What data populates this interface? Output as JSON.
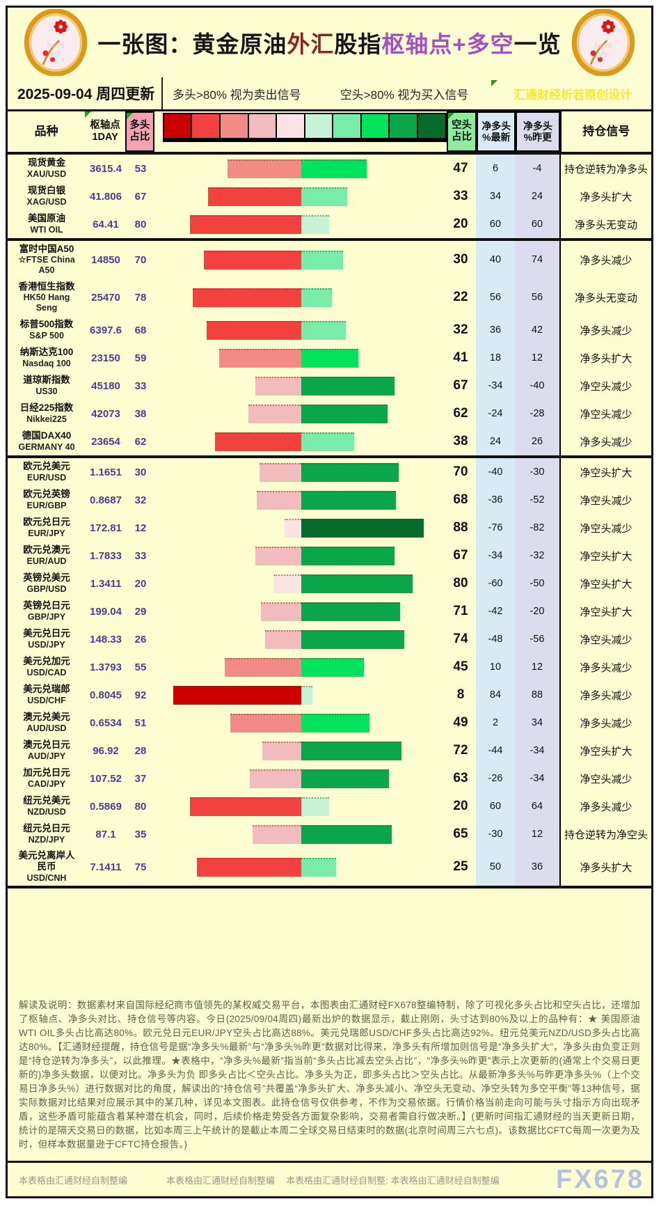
{
  "title": {
    "seg1": "一张图：黄金原油",
    "seg2": "外汇",
    "seg3": "股指",
    "seg4": "枢轴点+多空",
    "seg5": "一览"
  },
  "topbar": {
    "date": "2025-09-04 周四更新",
    "legend_long": "多头>80% 视为卖出信号",
    "legend_short": "空头>80% 视为买入信号",
    "watermark": "汇通财经析若原创设计"
  },
  "columns": {
    "product": "品种",
    "pivot1": "枢轴点",
    "pivot2": "1DAY",
    "long1": "多头",
    "long2": "占比",
    "short1": "空头",
    "short2": "占比",
    "net_new1": "净多头",
    "net_new2": "%最新",
    "net_prev1": "净多头",
    "net_prev2": "%昨更",
    "signal": "持仓信号"
  },
  "colors": {
    "page_bg": "#FDFDD2",
    "long_header_bg": "#F2A2B0",
    "short_header_bg": "#8FEB9D",
    "net_new_bg": "#D8EBF5",
    "net_prev_bg": "#DCDCEE",
    "pivot_text": "#4A3D92",
    "title_red": "#8B2626",
    "title_purple": "#A34FC6",
    "watermark_yellow": "#F0E93C",
    "fx678_watermark": "#AFBBE2"
  },
  "legend_scale": [
    "#CC0101",
    "#F24240",
    "#F28A86",
    "#F2BCBE",
    "#FBE2E4",
    "#C8F2D6",
    "#78ECA8",
    "#02E25C",
    "#0CA64A",
    "#056A2A"
  ],
  "table": {
    "rows": [
      {
        "name_lines": [
          "现货黄金",
          "XAU/USD"
        ],
        "pivot": "3615.4",
        "long": 53,
        "short": 47,
        "net_new": "6",
        "net_prev": "-4",
        "signal": "持仓逆转为净多头",
        "tall": false,
        "group_end": false
      },
      {
        "name_lines": [
          "现货白银",
          "XAG/USD"
        ],
        "pivot": "41.806",
        "long": 67,
        "short": 33,
        "net_new": "34",
        "net_prev": "24",
        "signal": "净多头扩大",
        "tall": false,
        "group_end": false
      },
      {
        "name_lines": [
          "美国原油",
          "WTI OIL"
        ],
        "pivot": "64.41",
        "long": 80,
        "short": 20,
        "net_new": "60",
        "net_prev": "60",
        "signal": "净多头无变动",
        "tall": false,
        "group_end": true
      },
      {
        "name_lines": [
          "富时中国A50",
          "☆FTSE China",
          "A50"
        ],
        "pivot": "14850",
        "long": 70,
        "short": 30,
        "net_new": "40",
        "net_prev": "74",
        "signal": "净多头减少",
        "tall": true,
        "group_end": false
      },
      {
        "name_lines": [
          "香港恒生指数",
          "HK50 Hang",
          "Seng"
        ],
        "pivot": "25470",
        "long": 78,
        "short": 22,
        "net_new": "56",
        "net_prev": "56",
        "signal": "净多头无变动",
        "tall": true,
        "group_end": false
      },
      {
        "name_lines": [
          "标普500指数",
          "S&P 500"
        ],
        "pivot": "6397.6",
        "long": 68,
        "short": 32,
        "net_new": "36",
        "net_prev": "42",
        "signal": "净多头减少",
        "tall": false,
        "group_end": false
      },
      {
        "name_lines": [
          "纳斯达克100",
          "Nasdaq 100"
        ],
        "pivot": "23150",
        "long": 59,
        "short": 41,
        "net_new": "18",
        "net_prev": "12",
        "signal": "净多头扩大",
        "tall": false,
        "group_end": false
      },
      {
        "name_lines": [
          "道琼斯指数",
          "US30"
        ],
        "pivot": "45180",
        "long": 33,
        "short": 67,
        "net_new": "-34",
        "net_prev": "-40",
        "signal": "净空头减少",
        "tall": false,
        "group_end": false
      },
      {
        "name_lines": [
          "日经225指数",
          "Nikkei225"
        ],
        "pivot": "42073",
        "long": 38,
        "short": 62,
        "net_new": "-24",
        "net_prev": "-28",
        "signal": "净空头减少",
        "tall": false,
        "group_end": false
      },
      {
        "name_lines": [
          "德国DAX40",
          "GERMANY 40"
        ],
        "pivot": "23654",
        "long": 62,
        "short": 38,
        "net_new": "24",
        "net_prev": "26",
        "signal": "净多头减少",
        "tall": false,
        "group_end": true
      },
      {
        "name_lines": [
          "欧元兑美元",
          "EUR/USD"
        ],
        "pivot": "1.1651",
        "long": 30,
        "short": 70,
        "net_new": "-40",
        "net_prev": "-30",
        "signal": "净空头扩大",
        "tall": false,
        "group_end": false
      },
      {
        "name_lines": [
          "欧元兑英镑",
          "EUR/GBP"
        ],
        "pivot": "0.8687",
        "long": 32,
        "short": 68,
        "net_new": "-36",
        "net_prev": "-52",
        "signal": "净空头减少",
        "tall": false,
        "group_end": false
      },
      {
        "name_lines": [
          "欧元兑日元",
          "EUR/JPY"
        ],
        "pivot": "172.81",
        "long": 12,
        "short": 88,
        "net_new": "-76",
        "net_prev": "-82",
        "signal": "净空头减少",
        "tall": false,
        "group_end": false
      },
      {
        "name_lines": [
          "欧元兑澳元",
          "EUR/AUD"
        ],
        "pivot": "1.7833",
        "long": 33,
        "short": 67,
        "net_new": "-34",
        "net_prev": "-32",
        "signal": "净空头扩大",
        "tall": false,
        "group_end": false
      },
      {
        "name_lines": [
          "英镑兑美元",
          "GBP/USD"
        ],
        "pivot": "1.3411",
        "long": 20,
        "short": 80,
        "net_new": "-60",
        "net_prev": "-50",
        "signal": "净空头扩大",
        "tall": false,
        "group_end": false
      },
      {
        "name_lines": [
          "英镑兑日元",
          "GBP/JPY"
        ],
        "pivot": "199.04",
        "long": 29,
        "short": 71,
        "net_new": "-42",
        "net_prev": "-20",
        "signal": "净空头扩大",
        "tall": false,
        "group_end": false
      },
      {
        "name_lines": [
          "美元兑日元",
          "USD/JPY"
        ],
        "pivot": "148.33",
        "long": 26,
        "short": 74,
        "net_new": "-48",
        "net_prev": "-56",
        "signal": "净空头减少",
        "tall": false,
        "group_end": false
      },
      {
        "name_lines": [
          "美元兑加元",
          "USD/CAD"
        ],
        "pivot": "1.3793",
        "long": 55,
        "short": 45,
        "net_new": "10",
        "net_prev": "12",
        "signal": "净多头减少",
        "tall": false,
        "group_end": false
      },
      {
        "name_lines": [
          "美元兑瑞郎",
          "USD/CHF"
        ],
        "pivot": "0.8045",
        "long": 92,
        "short": 8,
        "net_new": "84",
        "net_prev": "88",
        "signal": "净多头减少",
        "tall": false,
        "group_end": false
      },
      {
        "name_lines": [
          "澳元兑美元",
          "AUD/USD"
        ],
        "pivot": "0.6534",
        "long": 51,
        "short": 49,
        "net_new": "2",
        "net_prev": "34",
        "signal": "净多头减少",
        "tall": false,
        "group_end": false
      },
      {
        "name_lines": [
          "澳元兑日元",
          "AUD/JPY"
        ],
        "pivot": "96.92",
        "long": 28,
        "short": 72,
        "net_new": "-44",
        "net_prev": "-34",
        "signal": "净空头扩大",
        "tall": false,
        "group_end": false
      },
      {
        "name_lines": [
          "加元兑日元",
          "CAD/JPY"
        ],
        "pivot": "107.52",
        "long": 37,
        "short": 63,
        "net_new": "-26",
        "net_prev": "-34",
        "signal": "净空头减少",
        "tall": false,
        "group_end": false
      },
      {
        "name_lines": [
          "纽元兑美元",
          "NZD/USD"
        ],
        "pivot": "0.5869",
        "long": 80,
        "short": 20,
        "net_new": "60",
        "net_prev": "64",
        "signal": "净多头减少",
        "tall": false,
        "group_end": false
      },
      {
        "name_lines": [
          "纽元兑日元",
          "NZD/JPY"
        ],
        "pivot": "87.1",
        "long": 35,
        "short": 65,
        "net_new": "-30",
        "net_prev": "12",
        "signal": "持仓逆转为净空头",
        "tall": false,
        "group_end": false
      },
      {
        "name_lines": [
          "美元兑离岸人",
          "民币",
          "USD/CNH"
        ],
        "pivot": "7.1411",
        "long": 75,
        "short": 25,
        "net_new": "50",
        "net_prev": "36",
        "signal": "净多头扩大",
        "tall": true,
        "group_end": true
      }
    ]
  },
  "chart_data": {
    "type": "bar",
    "title": "一张图：黄金原油外汇股指枢轴点+多空一览",
    "categories": [
      "XAU/USD",
      "XAG/USD",
      "WTI OIL",
      "FTSE China A50",
      "HK50 Hang Seng",
      "S&P 500",
      "Nasdaq 100",
      "US30",
      "Nikkei225",
      "GERMANY 40",
      "EUR/USD",
      "EUR/GBP",
      "EUR/JPY",
      "EUR/AUD",
      "GBP/USD",
      "GBP/JPY",
      "USD/JPY",
      "USD/CAD",
      "USD/CHF",
      "AUD/USD",
      "AUD/JPY",
      "CAD/JPY",
      "NZD/USD",
      "NZD/JPY",
      "USD/CNH"
    ],
    "series": [
      {
        "name": "枢轴点1DAY",
        "values": [
          3615.4,
          41.806,
          64.41,
          14850,
          25470,
          6397.6,
          23150,
          45180,
          42073,
          23654,
          1.1651,
          0.8687,
          172.81,
          1.7833,
          1.3411,
          199.04,
          148.33,
          1.3793,
          0.8045,
          0.6534,
          96.92,
          107.52,
          0.5869,
          87.1,
          7.1411
        ]
      },
      {
        "name": "多头占比",
        "values": [
          53,
          67,
          80,
          70,
          78,
          68,
          59,
          33,
          38,
          62,
          30,
          32,
          12,
          33,
          20,
          29,
          26,
          55,
          92,
          51,
          28,
          37,
          80,
          35,
          75
        ]
      },
      {
        "name": "空头占比",
        "values": [
          47,
          33,
          20,
          30,
          22,
          32,
          41,
          67,
          62,
          38,
          70,
          68,
          88,
          67,
          80,
          71,
          74,
          45,
          8,
          49,
          72,
          63,
          20,
          65,
          25
        ]
      },
      {
        "name": "净多头%最新",
        "values": [
          6,
          34,
          60,
          40,
          56,
          36,
          18,
          -34,
          -24,
          24,
          -40,
          -36,
          -76,
          -34,
          -60,
          -42,
          -48,
          10,
          84,
          2,
          -44,
          -26,
          60,
          -30,
          50
        ]
      },
      {
        "name": "净多头%昨更",
        "values": [
          -4,
          24,
          60,
          74,
          56,
          42,
          12,
          -40,
          -28,
          26,
          -30,
          -52,
          -82,
          -32,
          -50,
          -20,
          -56,
          12,
          88,
          34,
          -34,
          -34,
          64,
          12,
          36
        ]
      }
    ],
    "xlabel": "品种",
    "ylabel": "占比%",
    "ylim": [
      0,
      100
    ],
    "legend_position": "top",
    "grid": false
  },
  "notes": {
    "text": "解读及说明：数据素材来自国际经纪商市值领先的某权威交易平台，本图表由汇通财经FX678整编特制，除了可视化多头占比和空头占比，还增加了枢轴点、净多头对比、持仓信号等内容。今日(2025/09/04周四)最新出炉的数据显示，截止刚刚，头寸达到80%及以上的品种有：★ 美国原油WTI OIL多头占比高达80%。欧元兑日元EUR/JPY空头占比高达88%。美元兑瑞郎USD/CHF多头占比高达92%。纽元兑美元NZD/USD多头占比高达80%。【汇通财经提醒，持仓信号是据“净多头%最新”与“净多头%昨更”数据对比得来，净多头有所增加则信号是“净多头扩大”，净多头由负变正则是“持仓逆转为净多头”，以此推理。★表格中，“净多头%最新”指当前“多头占比减去空头占比”，“净多头%昨更”表示上次更新的(通常上个交易日更新的)净多头数据，以便对比。净多头为负 即多头占比＜空头占比。净多头为正，即多头占比＞空头占比。从最新净多头%与昨更净多头%（上个交易日净多头%）进行数据对比的角度，解读出的“持仓信号”共覆盖“净多头扩大、净多头减小、净空头无变动、净空头转为多空平衡”等13种信号，据实际数据对比结果对应展示其中的某几种，详见本文图表。此持仓信号仅供参考，不作为交易依据。行情价格当前走向可能与头寸指示方向出现矛盾，这些矛盾可能蕴含着某种潜在机会，同时，后续价格走势受各方面复杂影响，交易者需自行做决断。】(更新时间指汇通财经的当天更新日期，统计的是隔天交易日的数据，比如本周三上午统计的是截止本周二全球交易日结束时的数据(北京时间周三六七点)。该数据比CFTC每周一次更为及时，但样本数据量逊于CFTC持仓报告。)"
  },
  "footer": {
    "item1": "本表格由汇通财经自制整编",
    "item2": "本表格由汇通财经自制整编",
    "item3": "本表格由汇通财经自制整:",
    "item4": "本表格由汇通财经自制整编",
    "watermark": "FX678"
  }
}
